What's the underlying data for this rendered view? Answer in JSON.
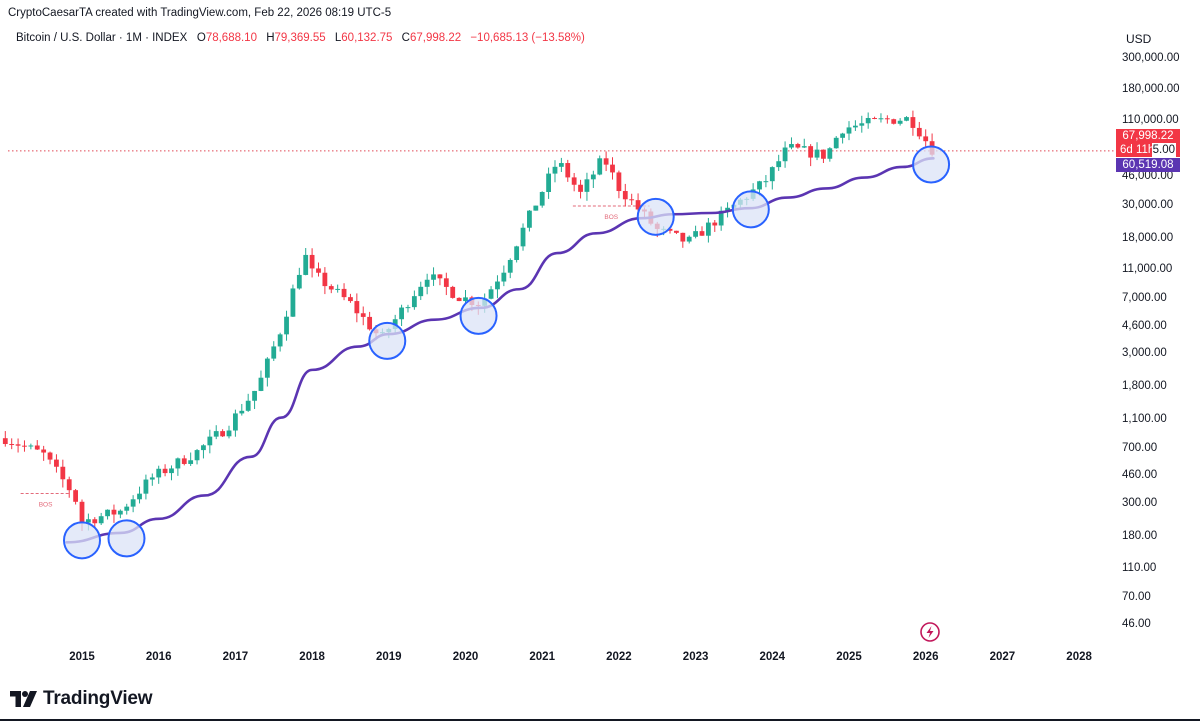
{
  "header": {
    "credit": "CryptoCaesarTA created with TradingView.com, Feb 22, 2026 08:19 UTC-5",
    "symbol": "Bitcoin / U.S. Dollar · 1M · INDEX",
    "open_label": "O",
    "open_value": "78,688.10",
    "high_label": "H",
    "high_value": "79,369.55",
    "low_label": "L",
    "low_value": "60,132.75",
    "close_label": "C",
    "close_value": "67,998.22",
    "change": "−10,685.13 (−13.58%)"
  },
  "axis": {
    "currency": "USD",
    "price_tag": "67,998.22",
    "countdown_tag": "6d 11h",
    "sma_tag": "60,519.08",
    "obscured_tick": "5.00"
  },
  "colors": {
    "up": "#22ab94",
    "down": "#f23645",
    "sma": "#5b35b2",
    "circle_fill": "#dbe3f7",
    "circle_stroke": "#2962ff",
    "bos": "#e36a7a",
    "price_line": "#e04855"
  },
  "chart_data": {
    "type": "candlestick",
    "title": "Bitcoin / U.S. Dollar · 1M · INDEX",
    "scale": "log",
    "y_ticks": [
      300000,
      180000,
      110000,
      46000,
      30000,
      18000,
      11000,
      7000,
      4600,
      3000,
      1800,
      1100,
      700,
      460,
      300,
      180,
      110,
      70,
      46
    ],
    "y_tick_labels": [
      "300,000.00",
      "180,000.00",
      "110,000.00",
      "46,000.00",
      "30,000.00",
      "18,000.00",
      "11,000.00",
      "7,000.00",
      "4,600.00",
      "3,000.00",
      "1,800.00",
      "1,100.00",
      "700.00",
      "460.00",
      "300.00",
      "180.00",
      "110.00",
      "70.00",
      "46.00"
    ],
    "x_ticks": [
      "2015",
      "2016",
      "2017",
      "2018",
      "2019",
      "2020",
      "2021",
      "2022",
      "2023",
      "2024",
      "2025",
      "2026",
      "2027",
      "2028"
    ],
    "last_price": 67998.22,
    "sma_last": 60519.08,
    "closes": [
      {
        "x": 2014.0,
        "y": 800
      },
      {
        "x": 2014.5,
        "y": 620
      },
      {
        "x": 2014.9,
        "y": 330
      },
      {
        "x": 2015.0,
        "y": 220
      },
      {
        "x": 2015.5,
        "y": 260
      },
      {
        "x": 2015.9,
        "y": 430
      },
      {
        "x": 2016.5,
        "y": 650
      },
      {
        "x": 2016.9,
        "y": 960
      },
      {
        "x": 2017.3,
        "y": 1800
      },
      {
        "x": 2017.6,
        "y": 4400
      },
      {
        "x": 2017.9,
        "y": 13800
      },
      {
        "x": 2018.0,
        "y": 10300
      },
      {
        "x": 2018.5,
        "y": 6400
      },
      {
        "x": 2018.9,
        "y": 3700
      },
      {
        "x": 2019.5,
        "y": 10000
      },
      {
        "x": 2019.9,
        "y": 7200
      },
      {
        "x": 2020.2,
        "y": 6400
      },
      {
        "x": 2020.5,
        "y": 11000
      },
      {
        "x": 2020.9,
        "y": 29000
      },
      {
        "x": 2021.2,
        "y": 58000
      },
      {
        "x": 2021.5,
        "y": 35000
      },
      {
        "x": 2021.8,
        "y": 61000
      },
      {
        "x": 2022.0,
        "y": 38500
      },
      {
        "x": 2022.5,
        "y": 20000
      },
      {
        "x": 2022.9,
        "y": 16500
      },
      {
        "x": 2023.5,
        "y": 29000
      },
      {
        "x": 2023.9,
        "y": 42000
      },
      {
        "x": 2024.2,
        "y": 71000
      },
      {
        "x": 2024.7,
        "y": 63000
      },
      {
        "x": 2024.9,
        "y": 96000
      },
      {
        "x": 2025.5,
        "y": 110000
      },
      {
        "x": 2025.8,
        "y": 112000
      },
      {
        "x": 2026.1,
        "y": 67998
      }
    ],
    "sma_points": [
      {
        "x": 2014.8,
        "y": 160
      },
      {
        "x": 2015.5,
        "y": 185
      },
      {
        "x": 2016.0,
        "y": 230
      },
      {
        "x": 2016.6,
        "y": 330
      },
      {
        "x": 2017.2,
        "y": 600
      },
      {
        "x": 2017.6,
        "y": 1100
      },
      {
        "x": 2018.0,
        "y": 2300
      },
      {
        "x": 2018.6,
        "y": 3300
      },
      {
        "x": 2019.0,
        "y": 4000
      },
      {
        "x": 2019.6,
        "y": 5000
      },
      {
        "x": 2020.2,
        "y": 6000
      },
      {
        "x": 2020.7,
        "y": 8000
      },
      {
        "x": 2021.2,
        "y": 14000
      },
      {
        "x": 2021.7,
        "y": 19000
      },
      {
        "x": 2022.3,
        "y": 24000
      },
      {
        "x": 2022.7,
        "y": 25500
      },
      {
        "x": 2023.2,
        "y": 26000
      },
      {
        "x": 2023.7,
        "y": 28000
      },
      {
        "x": 2024.2,
        "y": 33000
      },
      {
        "x": 2024.7,
        "y": 38000
      },
      {
        "x": 2025.2,
        "y": 45000
      },
      {
        "x": 2025.7,
        "y": 53000
      },
      {
        "x": 2026.1,
        "y": 60519
      }
    ],
    "touch_circles": [
      {
        "x": 2015.0,
        "y": 165
      },
      {
        "x": 2015.58,
        "y": 170
      },
      {
        "x": 2018.98,
        "y": 3600
      },
      {
        "x": 2020.17,
        "y": 5300
      },
      {
        "x": 2022.48,
        "y": 24500
      },
      {
        "x": 2023.72,
        "y": 27500
      },
      {
        "x": 2026.07,
        "y": 55000
      }
    ],
    "bos_markers": [
      {
        "label": "BOS",
        "x_start": 2014.2,
        "x_end": 2014.85,
        "y": 340
      },
      {
        "label": "BOS",
        "x_start": 2021.4,
        "x_end": 2022.4,
        "y": 29000
      }
    ]
  },
  "footer": {
    "brand": "TradingView"
  }
}
